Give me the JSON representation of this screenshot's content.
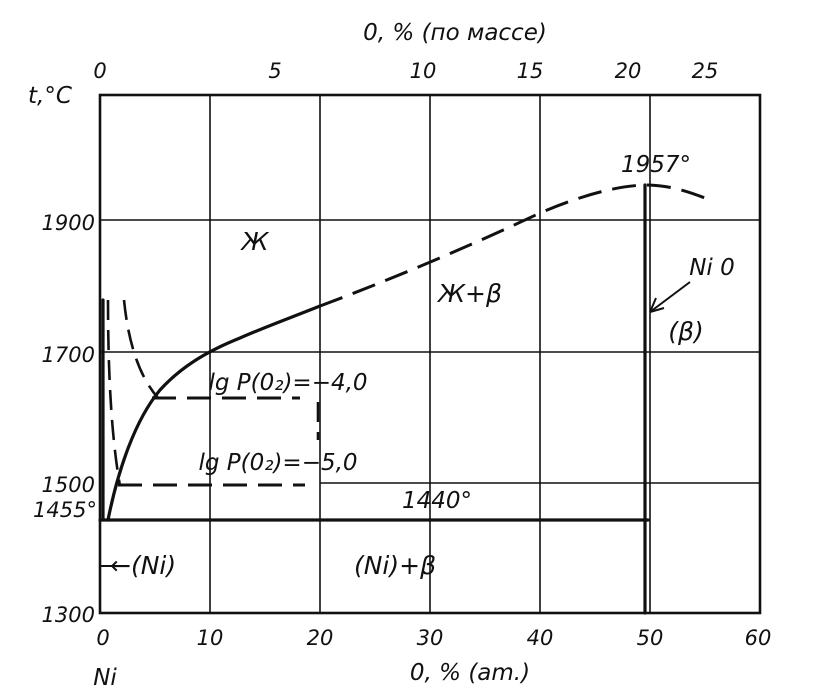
{
  "diagram": {
    "top_axis": {
      "title": "0, % (по массе)",
      "ticks": [
        "0",
        "5",
        "10",
        "15",
        "20",
        "25"
      ]
    },
    "bottom_axis": {
      "title": "0, % (am.)",
      "ticks": [
        "0",
        "10",
        "20",
        "30",
        "40",
        "50",
        "60"
      ],
      "start_label": "Ni"
    },
    "left_axis": {
      "title": "t,°C",
      "ticks": [
        "1300",
        "1500",
        "1700",
        "1900"
      ]
    },
    "regions": {
      "liquid": "Ж",
      "liquid_beta": "Ж+β",
      "ni_phase": "←(Ni)",
      "ni_beta": "(Ni)+β",
      "beta": "(β)"
    },
    "annotations": {
      "peak_temp": "1957°",
      "eutectic_temp": "1440°",
      "ni_melt": "1455°",
      "nio": "Ni 0",
      "lgp4": "lg P(0₂)=−4,0",
      "lgp5": "lg P(0₂)=−5,0"
    }
  }
}
